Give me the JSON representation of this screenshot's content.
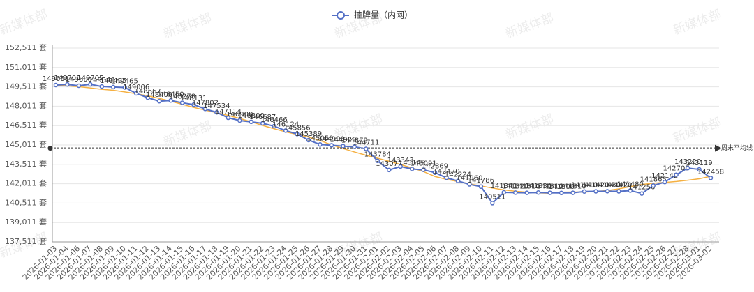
{
  "chart_data": {
    "type": "line",
    "watermark": "新媒体部",
    "categories": [
      "2026-01-03",
      "2026-01-04",
      "2026-01-06",
      "2026-01-07",
      "2026-01-08",
      "2026-01-09",
      "2026-01-10",
      "2026-01-11",
      "2026-01-12",
      "2026-01-13",
      "2026-01-14",
      "2026-01-15",
      "2026-01-16",
      "2026-01-17",
      "2026-01-18",
      "2026-01-19",
      "2026-01-20",
      "2026-01-21",
      "2026-01-22",
      "2026-01-23",
      "2026-01-24",
      "2026-01-25",
      "2026-01-26",
      "2026-01-27",
      "2026-01-28",
      "2026-01-29",
      "2026-01-30",
      "2026-01-31",
      "2026-02-01",
      "2026-02-02",
      "2026-02-03",
      "2026-02-04",
      "2026-02-05",
      "2026-02-06",
      "2026-02-07",
      "2026-02-08",
      "2026-02-09",
      "2026-02-10",
      "2026-02-11",
      "2026-02-12",
      "2026-02-13",
      "2026-02-14",
      "2026-02-15",
      "2026-02-16",
      "2026-02-17",
      "2026-02-18",
      "2026-02-19",
      "2026-02-20",
      "2026-02-21",
      "2026-02-22",
      "2026-02-23",
      "2026-02-24",
      "2026-02-25",
      "2026-02-26",
      "2026-02-27",
      "2026-02-28",
      "2026-03-01",
      "2026-03-02"
    ],
    "series": [
      {
        "name": "挂牌量（内网）",
        "color": "#5470c6",
        "values": [
          149651,
          149700,
          149600,
          149705,
          149540,
          149495,
          149465,
          149006,
          148667,
          148400,
          148450,
          148278,
          148131,
          147802,
          147534,
          147114,
          146900,
          146800,
          146687,
          146466,
          146124,
          145856,
          145389,
          145050,
          144990,
          144920,
          144872,
          144711,
          143784,
          143077,
          143343,
          143149,
          143091,
          142869,
          142470,
          142224,
          141960,
          141786,
          140511,
          141341,
          141320,
          141310,
          141330,
          141310,
          141300,
          141310,
          141410,
          141420,
          141430,
          141420,
          141480,
          141256,
          141865,
          142142,
          142707,
          143220,
          143119,
          142458
        ]
      }
    ],
    "average_line": {
      "label": "周末平均线",
      "value": 144760
    },
    "trend_color": "#f5b041",
    "ylim": [
      137511,
      152511
    ],
    "yticks": [
      {
        "value": 137511,
        "label": "137,511 套"
      },
      {
        "value": 139011,
        "label": "139,011 套"
      },
      {
        "value": 140511,
        "label": "140,511 套"
      },
      {
        "value": 142011,
        "label": "142,011 套"
      },
      {
        "value": 143511,
        "label": "143,511 套"
      },
      {
        "value": 145011,
        "label": "145,011 套"
      },
      {
        "value": 146511,
        "label": "146,511 套"
      },
      {
        "value": 148011,
        "label": "148,011 套"
      },
      {
        "value": 149511,
        "label": "149,511 套"
      },
      {
        "value": 151011,
        "label": "151,011 套"
      },
      {
        "value": 152511,
        "label": "152,511 套"
      }
    ],
    "grid": true
  }
}
